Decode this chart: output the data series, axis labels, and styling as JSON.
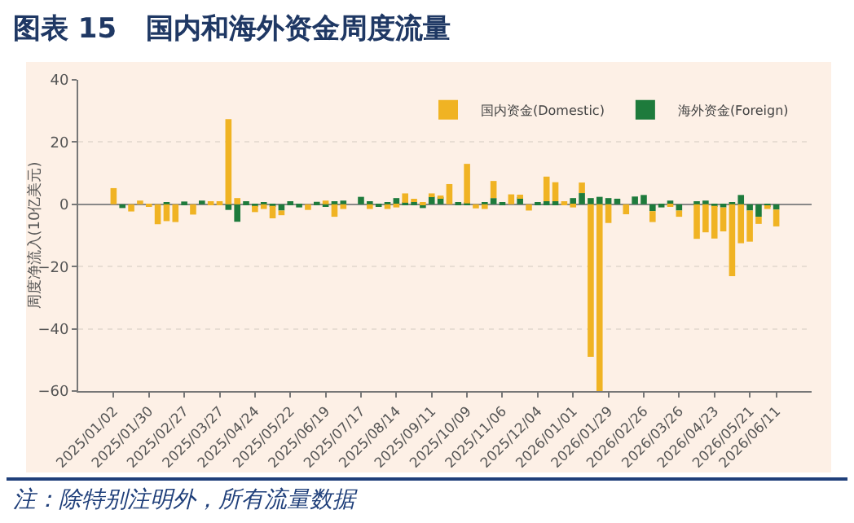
{
  "chart_data": {
    "type": "bar",
    "title": "图表 15   国内和海外资金周度流量",
    "ylabel": "周度净流入(10亿美元)",
    "annotations": [
      "注：除特别注明外，所有流量数据"
    ],
    "stacked": true,
    "grid": "y",
    "legend": "top right",
    "x": [
      "2025-01-02",
      "2025-01-09",
      "2025-01-16",
      "2025-01-23",
      "2025-01-30",
      "2025-02-06",
      "2025-02-13",
      "2025-02-20",
      "2025-02-27",
      "2025-03-06",
      "2025-03-13",
      "2025-03-20",
      "2025-03-27",
      "2025-04-03",
      "2025-04-10",
      "2025-04-17",
      "2025-04-24",
      "2025-05-01",
      "2025-05-08",
      "2025-05-15",
      "2025-05-22",
      "2025-05-29",
      "2025-06-05",
      "2025-06-12",
      "2025-06-19",
      "2025-06-26",
      "2025-07-03",
      "2025-07-10",
      "2025-07-17",
      "2025-07-24",
      "2025-07-31",
      "2025-08-07",
      "2025-08-14",
      "2025-08-21",
      "2025-08-28",
      "2025-09-04",
      "2025-09-11",
      "2025-09-18",
      "2025-09-25",
      "2025-10-02",
      "2025-10-09",
      "2025-10-16",
      "2025-10-23",
      "2025-10-30",
      "2025-11-06",
      "2025-11-13",
      "2025-11-20",
      "2025-11-27",
      "2025-12-04",
      "2025-12-11",
      "2025-12-18",
      "2025-12-25",
      "2026-01-01",
      "2026-01-08",
      "2026-01-15",
      "2026-01-22",
      "2026-01-29",
      "2026-02-05",
      "2026-02-12",
      "2026-02-19",
      "2026-02-26",
      "2026-03-05",
      "2026-03-12",
      "2026-03-19",
      "2026-03-26",
      "2026-04-02",
      "2026-04-09",
      "2026-04-16",
      "2026-04-23",
      "2026-04-30",
      "2026-05-07",
      "2026-05-14",
      "2026-05-21",
      "2026-05-28",
      "2026-06-04",
      "2026-06-11"
    ],
    "series": [
      {
        "name": "海外资金(Foreign)",
        "color": "#1e7b3c",
        "values": [
          0,
          -1.2,
          0,
          0,
          0,
          0,
          0.3,
          0,
          0.9,
          0,
          1.2,
          null,
          0,
          -1.8,
          -5.6,
          1,
          -0.5,
          0.3,
          -0.5,
          -2,
          1,
          -1,
          0,
          0.8,
          -0.5,
          1,
          1.2,
          0,
          2.4,
          1,
          -0.8,
          0.5,
          2,
          0.5,
          0.8,
          -1.2,
          2.5,
          2.3,
          0,
          0.5,
          0.3,
          0,
          0.5,
          2,
          0.5,
          null,
          2.3,
          0,
          0.3,
          1,
          1,
          0,
          2,
          3.6,
          2,
          2.4,
          2,
          1.8,
          0,
          2.5,
          3,
          -2.2,
          -1,
          1.2,
          -2,
          0,
          1,
          1.2,
          -0.5,
          -1,
          0.5,
          3,
          -2,
          -4,
          -0.8,
          -1.7
        ]
      },
      {
        "name": "国内资金(Domestic)",
        "color": "#f0b323",
        "values": [
          5.2,
          0,
          -2.3,
          1.2,
          -0.5,
          -6.4,
          -5.4,
          -5.7,
          0,
          -3.3,
          0,
          1,
          1,
          27.4,
          2,
          0,
          -2,
          -1.5,
          -4,
          -1.5,
          0,
          0,
          -1.8,
          0,
          1.2,
          -4,
          -1.5,
          0,
          0,
          -1.5,
          0,
          -1.5,
          -1,
          3,
          0.7,
          0.5,
          1,
          0.5,
          6.5,
          0,
          12.7,
          -1.3,
          -1.5,
          5.5,
          0,
          3.2,
          0.8,
          -2,
          0,
          7.9,
          6.1,
          1,
          -1,
          3.4,
          -49,
          -60,
          -6,
          0,
          -3.2,
          0,
          0,
          -3.5,
          0,
          -0.8,
          -2,
          0,
          -11.1,
          -9,
          -10.5,
          -7.7,
          -23.1,
          -12.5,
          -10,
          -2.3,
          -0.7,
          -5.4
        ]
      }
    ],
    "xlim": [
      "2024-12-05",
      "2026-07-09"
    ],
    "xticks": [
      {
        "value": "2025-01-02",
        "label": "2025/01/02"
      },
      {
        "value": "2025-01-30",
        "label": "2025/01/30"
      },
      {
        "value": "2025-02-27",
        "label": "2025/02/27"
      },
      {
        "value": "2025-03-27",
        "label": "2025/03/27"
      },
      {
        "value": "2025-04-24",
        "label": "2025/04/24"
      },
      {
        "value": "2025-05-22",
        "label": "2025/05/22"
      },
      {
        "value": "2025-06-19",
        "label": "2025/06/19"
      },
      {
        "value": "2025-07-17",
        "label": "2025/07/17"
      },
      {
        "value": "2025-08-14",
        "label": "2025/08/14"
      },
      {
        "value": "2025-09-11",
        "label": "2025/09/11"
      },
      {
        "value": "2025-10-09",
        "label": "2025/10/09"
      },
      {
        "value": "2025-11-06",
        "label": "2025/11/06"
      },
      {
        "value": "2025-12-04",
        "label": "2025/12/04"
      },
      {
        "value": "2026-01-01",
        "label": "2026/01/01"
      },
      {
        "value": "2026-01-29",
        "label": "2026/01/29"
      },
      {
        "value": "2026-02-26",
        "label": "2026/02/26"
      },
      {
        "value": "2026-03-26",
        "label": "2026/03/26"
      },
      {
        "value": "2026-04-23",
        "label": "2026/04/23"
      },
      {
        "value": "2026-05-21",
        "label": "2026/05/21"
      },
      {
        "value": "2026-06-11",
        "label": "2026/06/11"
      }
    ],
    "ylim": [
      -60,
      40
    ],
    "yticks": [
      -60,
      -40,
      -20,
      0,
      20,
      40
    ]
  }
}
